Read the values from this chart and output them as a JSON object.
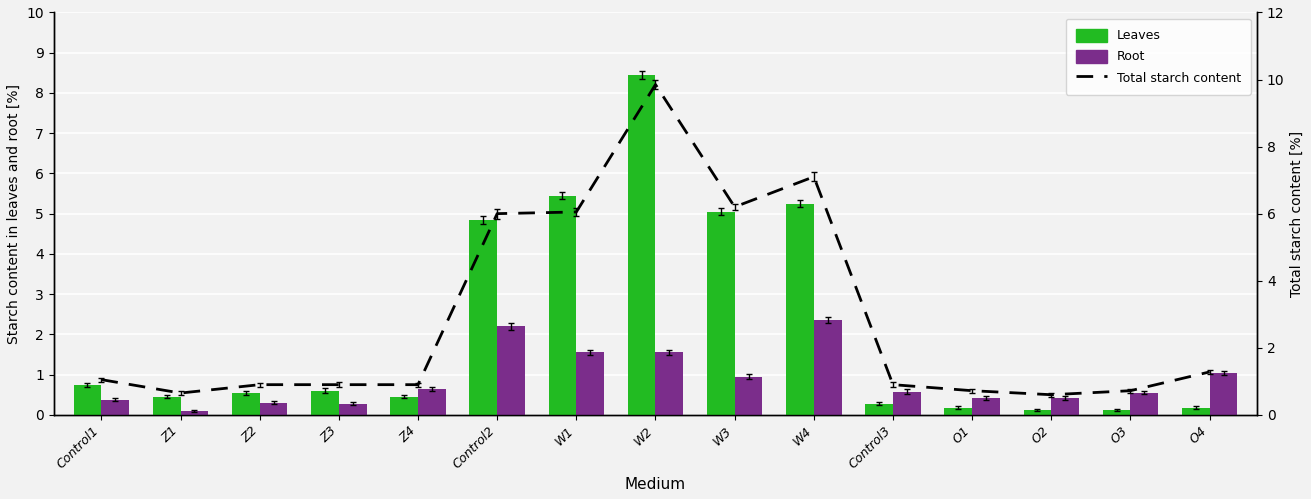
{
  "categories": [
    "Control1",
    "Z1",
    "Z2",
    "Z3",
    "Z4",
    "Control2",
    "W1",
    "W2",
    "W3",
    "W4",
    "Control3",
    "O1",
    "O2",
    "O3",
    "O4"
  ],
  "leaves": [
    0.75,
    0.45,
    0.55,
    0.6,
    0.45,
    4.85,
    5.45,
    8.45,
    5.05,
    5.25,
    0.28,
    0.18,
    0.12,
    0.12,
    0.18
  ],
  "leaves_err": [
    0.05,
    0.04,
    0.05,
    0.06,
    0.04,
    0.1,
    0.08,
    0.1,
    0.08,
    0.08,
    0.04,
    0.03,
    0.03,
    0.03,
    0.04
  ],
  "root": [
    0.38,
    0.1,
    0.3,
    0.28,
    0.65,
    2.2,
    1.55,
    1.55,
    0.95,
    2.35,
    0.58,
    0.42,
    0.42,
    0.55,
    1.05
  ],
  "root_err": [
    0.04,
    0.03,
    0.04,
    0.04,
    0.05,
    0.08,
    0.06,
    0.06,
    0.06,
    0.07,
    0.05,
    0.04,
    0.04,
    0.04,
    0.05
  ],
  "total_starch": [
    1.05,
    0.65,
    0.9,
    0.9,
    0.9,
    6.0,
    6.05,
    9.85,
    6.2,
    7.1,
    0.9,
    0.72,
    0.6,
    0.72,
    1.28
  ],
  "total_starch_err": [
    0.06,
    0.05,
    0.06,
    0.07,
    0.06,
    0.15,
    0.12,
    0.14,
    0.1,
    0.14,
    0.08,
    0.06,
    0.06,
    0.06,
    0.07
  ],
  "leaves_color": "#22BB22",
  "root_color": "#7B2D8B",
  "line_color": "#000000",
  "ylabel_left": "Starch content in leaves and root [%]",
  "ylabel_right": "Total starch content [%]",
  "xlabel": "Medium",
  "ylim_left": [
    0,
    10
  ],
  "ylim_right": [
    0,
    12
  ],
  "yticks_left": [
    0,
    1,
    2,
    3,
    4,
    5,
    6,
    7,
    8,
    9,
    10
  ],
  "yticks_right": [
    0,
    2,
    4,
    6,
    8,
    10,
    12
  ],
  "legend_labels": [
    "Leaves",
    "Root",
    "Total starch content"
  ],
  "bar_width": 0.35,
  "background_color": "#f2f2f2"
}
